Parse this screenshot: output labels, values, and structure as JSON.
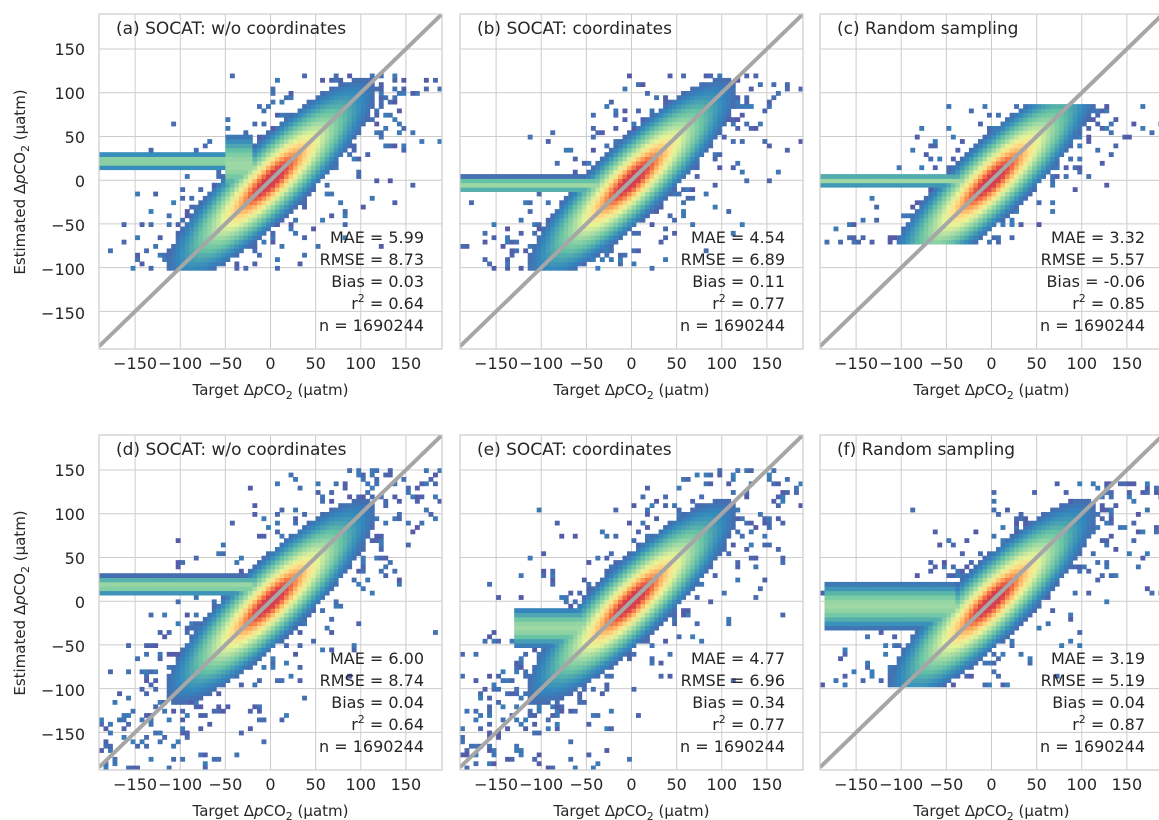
{
  "figure": {
    "x_axis_label": {
      "prefix": "Target ",
      "delta": "Δ",
      "p": "p",
      "co": "CO",
      "sub": "2",
      "unit": " (μatm)"
    },
    "y_axis_label": {
      "prefix": "Estimated ",
      "delta": "Δ",
      "p": "p",
      "co": "CO",
      "sub": "2",
      "unit": " (μatm)"
    },
    "ticks": [
      "−150",
      "−100",
      "−50",
      "0",
      "50",
      "100",
      "150"
    ]
  },
  "chart_data": [
    {
      "type": "heatmap",
      "title": "(a) SOCAT: w/o coordinates",
      "xlim": [
        -190,
        190
      ],
      "ylim": [
        -193,
        190
      ],
      "x_ticks": [
        -150,
        -100,
        -50,
        0,
        50,
        100,
        150
      ],
      "y_ticks": [
        -150,
        -100,
        -50,
        0,
        50,
        100,
        150
      ],
      "diagonal": "y = x",
      "grid": true,
      "colormap": "Spectral_r",
      "stats": {
        "mae": "MAE = 5.99",
        "rmse": "RMSE = 8.73",
        "bias": "Bias = 0.03",
        "r2_prefix": "r",
        "r2_sup": "2",
        "r2_value": " = 0.64",
        "n": "n = 1690244"
      },
      "clip": [
        -105,
        122
      ],
      "bands": [
        {
          "x0": -190,
          "x1": -20,
          "y": 22,
          "w": 5
        },
        {
          "x0": -50,
          "x1": -20,
          "y": 18,
          "w": 18
        }
      ]
    },
    {
      "type": "heatmap",
      "title": "(b) SOCAT: coordinates",
      "xlim": [
        -190,
        190
      ],
      "ylim": [
        -193,
        190
      ],
      "x_ticks": [
        -150,
        -100,
        -50,
        0,
        50,
        100,
        150
      ],
      "y_ticks": [
        -150,
        -100,
        -50,
        0,
        50,
        100,
        150
      ],
      "diagonal": "y = x",
      "grid": true,
      "colormap": "Spectral_r",
      "stats": {
        "mae": "MAE = 4.54",
        "rmse": "RMSE = 6.89",
        "bias": "Bias = 0.11",
        "r2_prefix": "r",
        "r2_sup": "2",
        "r2_value": " = 0.77",
        "n": "n = 1690244"
      },
      "clip": [
        -105,
        120
      ],
      "bands": [
        {
          "x0": -190,
          "x1": -20,
          "y": -5,
          "w": 5
        }
      ]
    },
    {
      "type": "heatmap",
      "title": "(c) Random sampling",
      "xlim": [
        -190,
        190
      ],
      "ylim": [
        -193,
        190
      ],
      "x_ticks": [
        -150,
        -100,
        -50,
        0,
        50,
        100,
        150
      ],
      "y_ticks": [
        -150,
        -100,
        -50,
        0,
        50,
        100,
        150
      ],
      "diagonal": "y = x",
      "grid": true,
      "colormap": "Spectral_r",
      "stats": {
        "mae": "MAE = 3.32",
        "rmse": "RMSE = 5.57",
        "bias": "Bias = -0.06",
        "r2_prefix": "r",
        "r2_sup": "2",
        "r2_value": " = 0.85",
        "n": "n = 1690244"
      },
      "clip": [
        -75,
        85
      ],
      "bands": [
        {
          "x0": -190,
          "x1": -20,
          "y": 0,
          "w": 4
        }
      ]
    },
    {
      "type": "heatmap",
      "title": "(d) SOCAT: w/o coordinates",
      "xlim": [
        -190,
        190
      ],
      "ylim": [
        -193,
        190
      ],
      "x_ticks": [
        -150,
        -100,
        -50,
        0,
        50,
        100,
        150
      ],
      "y_ticks": [
        -150,
        -100,
        -50,
        0,
        50,
        100,
        150
      ],
      "diagonal": "y = x",
      "grid": true,
      "colormap": "Spectral_r",
      "stats": {
        "mae": "MAE = 6.00",
        "rmse": "RMSE = 8.74",
        "bias": "Bias = 0.04",
        "r2_prefix": "r",
        "r2_sup": "2",
        "r2_value": " = 0.64",
        "n": "n = 1690244"
      },
      "clip": [
        -193,
        150
      ],
      "bands": [
        {
          "x0": -190,
          "x1": -20,
          "y": 18,
          "w": 6
        }
      ]
    },
    {
      "type": "heatmap",
      "title": "(e) SOCAT: coordinates",
      "xlim": [
        -190,
        190
      ],
      "ylim": [
        -193,
        190
      ],
      "x_ticks": [
        -150,
        -100,
        -50,
        0,
        50,
        100,
        150
      ],
      "y_ticks": [
        -150,
        -100,
        -50,
        0,
        50,
        100,
        150
      ],
      "diagonal": "y = x",
      "grid": true,
      "colormap": "Spectral_r",
      "stats": {
        "mae": "MAE = 4.77",
        "rmse": "RMSE = 6.96",
        "bias": "Bias = 0.34",
        "r2_prefix": "r",
        "r2_sup": "2",
        "r2_value": " = 0.77",
        "n": "n = 1690244"
      },
      "clip": [
        -193,
        150
      ],
      "bands": [
        {
          "x0": -130,
          "x1": -20,
          "y": -30,
          "w": 12
        }
      ]
    },
    {
      "type": "heatmap",
      "title": "(f) Random sampling",
      "xlim": [
        -190,
        190
      ],
      "ylim": [
        -193,
        190
      ],
      "x_ticks": [
        -150,
        -100,
        -50,
        0,
        50,
        100,
        150
      ],
      "y_ticks": [
        -150,
        -100,
        -50,
        0,
        50,
        100,
        150
      ],
      "diagonal": "y = x",
      "grid": true,
      "colormap": "Spectral_r",
      "stats": {
        "mae": "MAE = 3.19",
        "rmse": "RMSE = 5.19",
        "bias": "Bias = 0.04",
        "r2_prefix": "r",
        "r2_sup": "2",
        "r2_value": " = 0.87",
        "n": "n = 1690244"
      },
      "clip": [
        -100,
        135
      ],
      "bands": [
        {
          "x0": -185,
          "x1": -40,
          "y": -5,
          "w": 14
        }
      ]
    }
  ]
}
